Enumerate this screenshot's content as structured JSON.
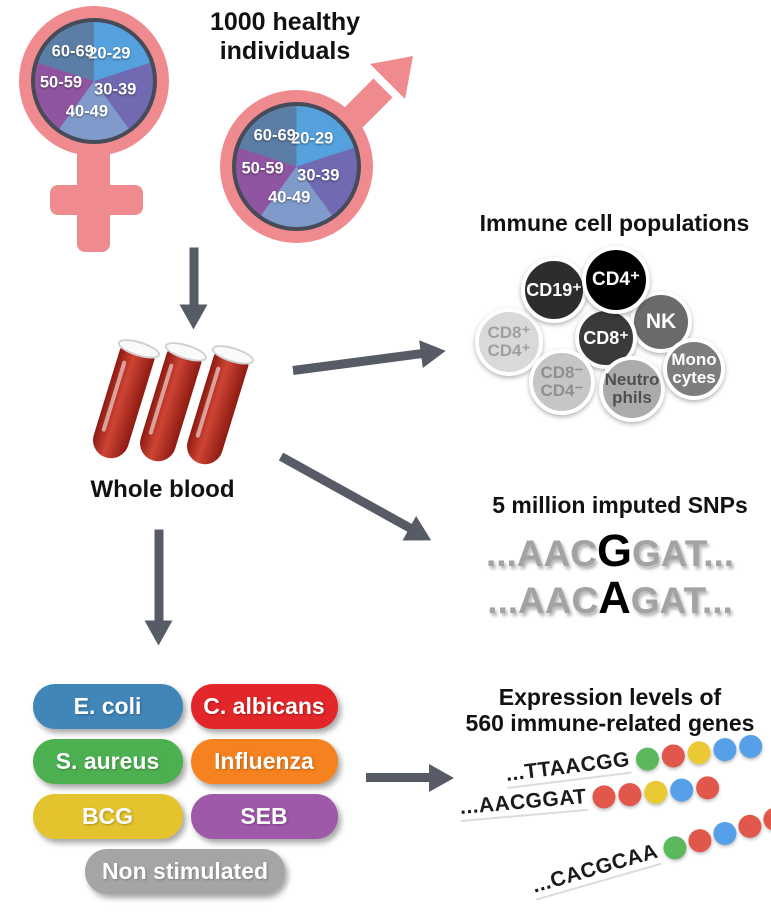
{
  "cohort": {
    "title": "1000 healthy\nindividuals"
  },
  "demographics": {
    "symbol_color": "#ef8a8e",
    "age_groups": [
      {
        "label": "20-29",
        "color": "#55a1dd"
      },
      {
        "label": "30-39",
        "color": "#6f6ab1"
      },
      {
        "label": "40-49",
        "color": "#809bcb"
      },
      {
        "label": "50-59",
        "color": "#8f55a0"
      },
      {
        "label": "60-69",
        "color": "#5a7ea6"
      }
    ]
  },
  "whole_blood": {
    "label": "Whole blood",
    "tube_count": 3,
    "tube_color": "#a91f16"
  },
  "immune_cells": {
    "title": "Immune cell populations",
    "cells": [
      {
        "id": "cd8pos-cd4pos",
        "label": "CD8⁺\nCD4⁺",
        "bg": "#d9d9d9",
        "fg": "#9f9f9f"
      },
      {
        "id": "cd19pos",
        "label": "CD19⁺",
        "bg": "#2d2d2d",
        "fg": "#ffffff"
      },
      {
        "id": "nk",
        "label": "NK",
        "bg": "#6b6b6b",
        "fg": "#ffffff"
      },
      {
        "id": "cd8pos",
        "label": "CD8⁺",
        "bg": "#3a3a3a",
        "fg": "#ffffff"
      },
      {
        "id": "cd4pos",
        "label": "CD4⁺",
        "bg": "#000000",
        "fg": "#ffffff"
      },
      {
        "id": "cd8neg-cd4neg",
        "label": "CD8⁻\nCD4⁻",
        "bg": "#c6c6c6",
        "fg": "#8f8f8f"
      },
      {
        "id": "neutrophils",
        "label": "Neutro\nphils",
        "bg": "#ababab",
        "fg": "#4f4f4f"
      },
      {
        "id": "monocytes",
        "label": "Mono\ncytes",
        "bg": "#7d7d7d",
        "fg": "#ffffff"
      }
    ]
  },
  "snps": {
    "title": "5 million imputed SNPs",
    "sequences": [
      {
        "pre": "...AAC",
        "allele": "G",
        "post": "GAT..."
      },
      {
        "pre": "...AAC",
        "allele": "A",
        "post": "GAT..."
      }
    ]
  },
  "stimuli": {
    "items": [
      {
        "label": "E. coli",
        "color": "#4186b8"
      },
      {
        "label": "C. albicans",
        "color": "#e22629"
      },
      {
        "label": "S. aureus",
        "color": "#4cb050"
      },
      {
        "label": "Influenza",
        "color": "#f5821f"
      },
      {
        "label": "BCG",
        "color": "#e3c32e"
      },
      {
        "label": "SEB",
        "color": "#9e59a8"
      },
      {
        "label": "Non stimulated",
        "color": "#a5a5a5"
      }
    ]
  },
  "expression": {
    "title": "Expression levels of\n560 immune-related genes",
    "dot_colors": {
      "green": "#5cb85c",
      "red": "#e2574c",
      "yellow": "#eac935",
      "blue": "#55a0e8"
    },
    "rows": [
      {
        "sequence": "...TTAACGG",
        "dots": [
          "green",
          "red",
          "yellow",
          "blue",
          "blue"
        ]
      },
      {
        "sequence": "...AACGGAT",
        "dots": [
          "red",
          "red",
          "yellow",
          "blue",
          "red"
        ]
      },
      {
        "sequence": "...CACGCAA",
        "dots": [
          "green",
          "red",
          "blue",
          "red",
          "red"
        ]
      }
    ]
  }
}
